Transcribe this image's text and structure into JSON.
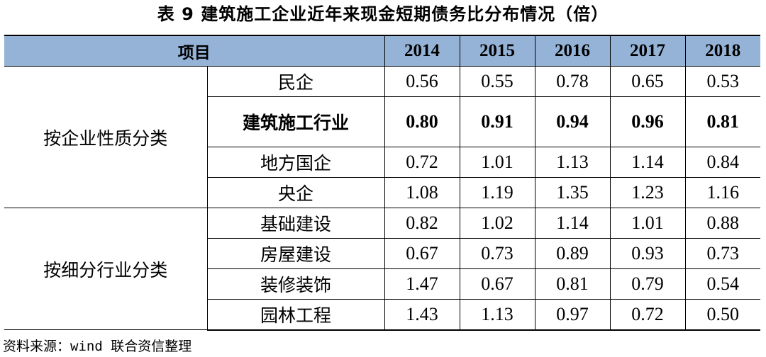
{
  "caption": "表 9   建筑施工企业近年来现金短期债务比分布情况（倍）",
  "header": {
    "item_label": "项目",
    "years": [
      "2014",
      "2015",
      "2016",
      "2017",
      "2018"
    ]
  },
  "groups": [
    {
      "label": "按企业性质分类",
      "rows": [
        {
          "name": "民企",
          "values": [
            "0.56",
            "0.55",
            "0.78",
            "0.65",
            "0.53"
          ]
        },
        {
          "name": "建筑施工行业",
          "values": [
            "0.80",
            "0.91",
            "0.94",
            "0.96",
            "0.81"
          ]
        },
        {
          "name": "地方国企",
          "values": [
            "0.72",
            "1.01",
            "1.13",
            "1.14",
            "0.84"
          ]
        },
        {
          "name": "央企",
          "values": [
            "1.08",
            "1.19",
            "1.35",
            "1.23",
            "1.16"
          ]
        }
      ]
    },
    {
      "label": "按细分行业分类",
      "rows": [
        {
          "name": "基础建设",
          "values": [
            "0.82",
            "1.02",
            "1.14",
            "1.01",
            "0.88"
          ]
        },
        {
          "name": "房屋建设",
          "values": [
            "0.67",
            "0.73",
            "0.89",
            "0.93",
            "0.73"
          ]
        },
        {
          "name": "装修装饰",
          "values": [
            "1.47",
            "0.67",
            "0.81",
            "0.79",
            "0.54"
          ]
        },
        {
          "name": "园林工程",
          "values": [
            "1.43",
            "1.13",
            "0.97",
            "0.72",
            "0.50"
          ]
        }
      ]
    }
  ],
  "source": "资料来源：wind 联合资信整理"
}
